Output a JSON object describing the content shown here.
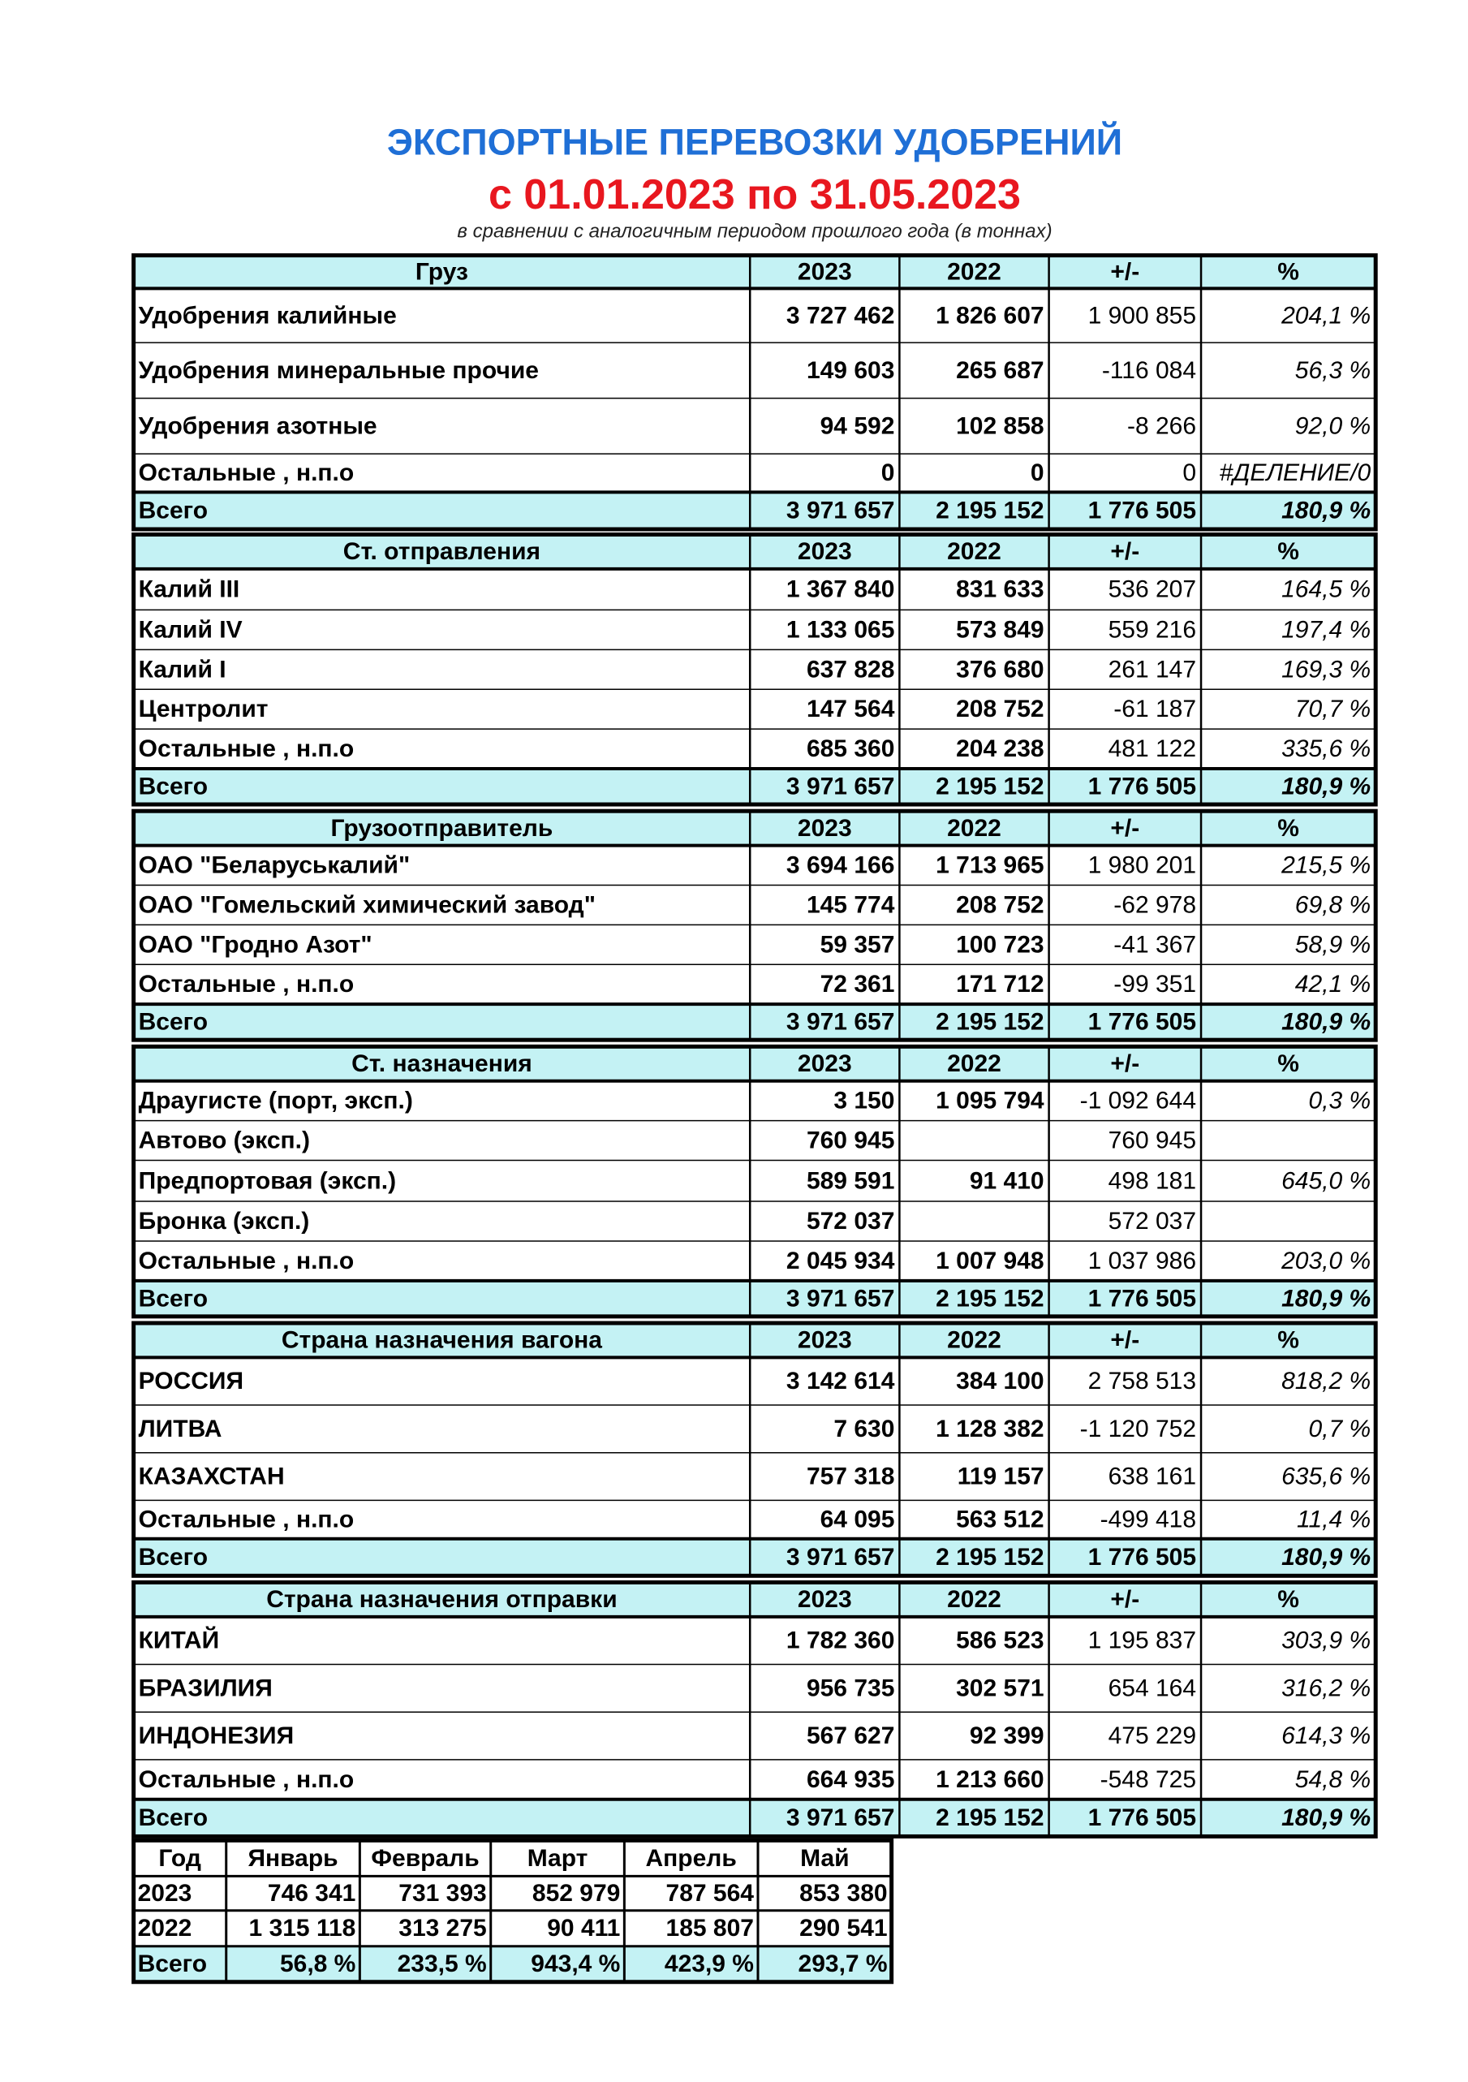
{
  "header": {
    "title": "ЭКСПОРТНЫЕ ПЕРЕВОЗКИ УДОБРЕНИЙ",
    "period": "с 01.01.2023 по 31.05.2023",
    "subtitle": "в сравнении с аналогичным периодом прошлого года (в тоннах)"
  },
  "sections": [
    {
      "columns": [
        "Груз",
        "2023",
        "2022",
        "+/-",
        "%"
      ],
      "rows": [
        [
          "Удобрения калийные",
          "3 727 462",
          "1 826 607",
          "1 900 855",
          "204,1 %"
        ],
        [
          "Удобрения минеральные прочие",
          "149 603",
          "265 687",
          "-116 084",
          "56,3 %"
        ],
        [
          "Удобрения азотные",
          "94 592",
          "102 858",
          "-8 266",
          "92,0 %"
        ],
        [
          "Остальные , н.п.о",
          "0",
          "0",
          "0",
          "#ДЕЛЕНИЕ/0"
        ]
      ],
      "total": [
        "Всего",
        "3 971 657",
        "2 195 152",
        "1 776 505",
        "180,9 %"
      ]
    },
    {
      "columns": [
        "Ст. отправления",
        "2023",
        "2022",
        "+/-",
        "%"
      ],
      "rows": [
        [
          "Калий III",
          "1 367 840",
          "831 633",
          "536 207",
          "164,5 %"
        ],
        [
          "Калий IV",
          "1 133 065",
          "573 849",
          "559 216",
          "197,4 %"
        ],
        [
          "Калий I",
          "637 828",
          "376 680",
          "261 147",
          "169,3 %"
        ],
        [
          "Центролит",
          "147 564",
          "208 752",
          "-61 187",
          "70,7 %"
        ],
        [
          "Остальные , н.п.о",
          "685 360",
          "204 238",
          "481 122",
          "335,6 %"
        ]
      ],
      "total": [
        "Всего",
        "3 971 657",
        "2 195 152",
        "1 776 505",
        "180,9 %"
      ]
    },
    {
      "columns": [
        "Грузоотправитель",
        "2023",
        "2022",
        "+/-",
        "%"
      ],
      "rows": [
        [
          "ОАО \"Беларуськалий\"",
          "3 694 166",
          "1 713 965",
          "1 980 201",
          "215,5 %"
        ],
        [
          "ОАО \"Гомельский химический завод\"",
          "145 774",
          "208 752",
          "-62 978",
          "69,8 %"
        ],
        [
          "ОАО \"Гродно Азот\"",
          "59 357",
          "100 723",
          "-41 367",
          "58,9 %"
        ],
        [
          "Остальные , н.п.о",
          "72 361",
          "171 712",
          "-99 351",
          "42,1 %"
        ]
      ],
      "total": [
        "Всего",
        "3 971 657",
        "2 195 152",
        "1 776 505",
        "180,9 %"
      ]
    },
    {
      "columns": [
        "Ст. назначения",
        "2023",
        "2022",
        "+/-",
        "%"
      ],
      "rows": [
        [
          "Драугисте (порт, эксп.)",
          "3 150",
          "1 095 794",
          "-1 092 644",
          "0,3 %"
        ],
        [
          "Автово (эксп.)",
          "760 945",
          null,
          "760 945",
          null
        ],
        [
          "Предпортовая (эксп.)",
          "589 591",
          "91 410",
          "498 181",
          "645,0 %"
        ],
        [
          "Бронка (эксп.)",
          "572 037",
          null,
          "572 037",
          null
        ],
        [
          "Остальные , н.п.о",
          "2 045 934",
          "1 007 948",
          "1 037 986",
          "203,0 %"
        ]
      ],
      "total": [
        "Всего",
        "3 971 657",
        "2 195 152",
        "1 776 505",
        "180,9 %"
      ]
    },
    {
      "columns": [
        "Страна назначения вагона",
        "2023",
        "2022",
        "+/-",
        "%"
      ],
      "rows": [
        [
          "РОССИЯ",
          "3 142 614",
          "384 100",
          "2 758 513",
          "818,2 %"
        ],
        [
          "ЛИТВА",
          "7 630",
          "1 128 382",
          "-1 120 752",
          "0,7 %"
        ],
        [
          "КАЗАХСТАН",
          "757 318",
          "119 157",
          "638 161",
          "635,6 %"
        ],
        [
          "Остальные , н.п.о",
          "64 095",
          "563 512",
          "-499 418",
          "11,4 %"
        ]
      ],
      "total": [
        "Всего",
        "3 971 657",
        "2 195 152",
        "1 776 505",
        "180,9 %"
      ]
    },
    {
      "columns": [
        "Страна назначения отправки",
        "2023",
        "2022",
        "+/-",
        "%"
      ],
      "rows": [
        [
          "КИТАЙ",
          "1 782 360",
          "586 523",
          "1 195 837",
          "303,9 %"
        ],
        [
          "БРАЗИЛИЯ",
          "956 735",
          "302 571",
          "654 164",
          "316,2 %"
        ],
        [
          "ИНДОНЕЗИЯ",
          "567 627",
          "92 399",
          "475 229",
          "614,3 %"
        ],
        [
          "Остальные , н.п.о",
          "664 935",
          "1 213 660",
          "-548 725",
          "54,8 %"
        ]
      ],
      "total": [
        "Всего",
        "3 971 657",
        "2 195 152",
        "1 776 505",
        "180,9 %"
      ]
    }
  ],
  "monthly": {
    "columns": [
      "Год",
      "Январь",
      "Февраль",
      "Март",
      "Апрель",
      "Май"
    ],
    "rows": [
      [
        "2023",
        "746 341",
        "731 393",
        "852 979",
        "787 564",
        "853 380"
      ],
      [
        "2022",
        "1 315 118",
        "313 275",
        "90 411",
        "185 807",
        "290 541"
      ],
      [
        "Всего",
        "56,8 %",
        "233,5 %",
        "943,4 %",
        "423,9 %",
        "293,7 %"
      ]
    ]
  }
}
